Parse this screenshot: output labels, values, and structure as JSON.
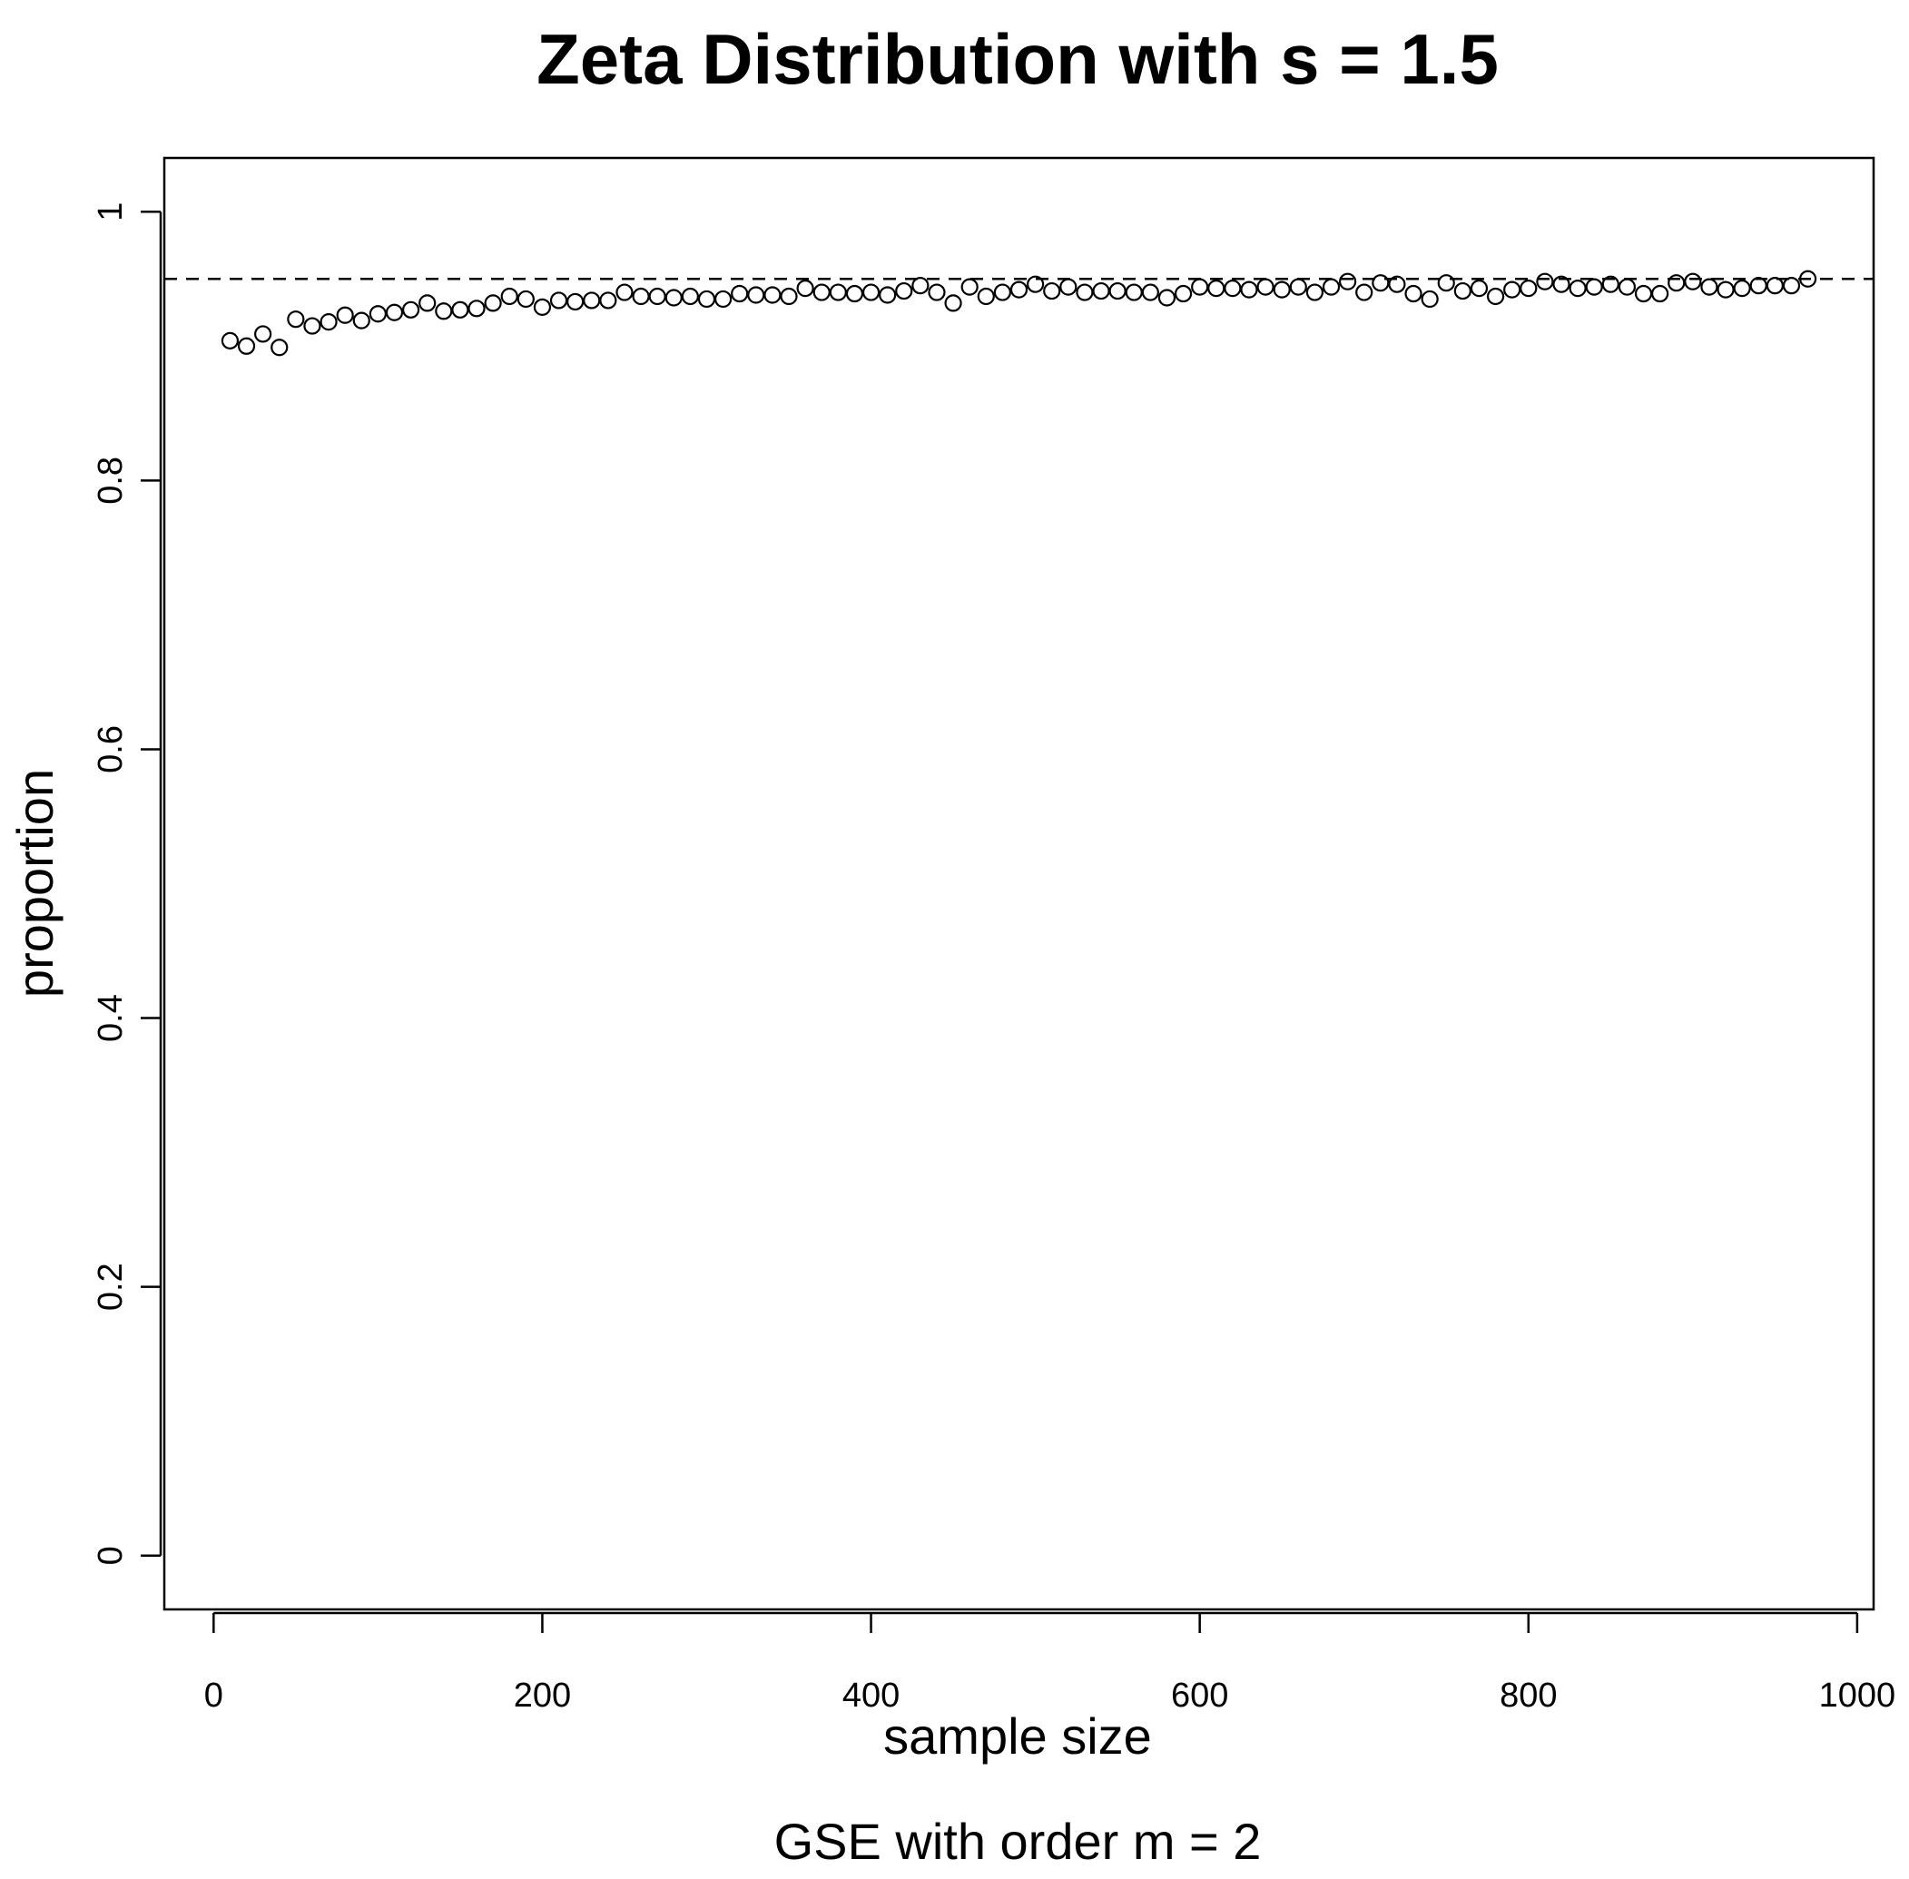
{
  "chart_data": {
    "type": "scatter",
    "title": "Zeta Distribution with s = 1.5",
    "xlabel": "sample size",
    "ylabel": "proportion",
    "subtitle": "GSE with order m = 2",
    "xlim": [
      -30,
      1010
    ],
    "ylim": [
      -0.04,
      1.04
    ],
    "x_ticks": [
      0,
      200,
      400,
      600,
      800,
      1000
    ],
    "x_tick_labels": [
      "0",
      "200",
      "400",
      "600",
      "800",
      "1000"
    ],
    "y_ticks": [
      0,
      0.2,
      0.4,
      0.6,
      0.8,
      1
    ],
    "y_tick_labels": [
      "0",
      "0.2",
      "0.4",
      "0.6",
      "0.8",
      "1"
    ],
    "reference_line": {
      "y": 0.95,
      "style": "dashed"
    },
    "marker": "open-circle",
    "grid": false,
    "x": [
      10,
      20,
      30,
      40,
      50,
      60,
      70,
      80,
      90,
      100,
      110,
      120,
      130,
      140,
      150,
      160,
      170,
      180,
      190,
      200,
      210,
      220,
      230,
      240,
      250,
      260,
      270,
      280,
      290,
      300,
      310,
      320,
      330,
      340,
      350,
      360,
      370,
      380,
      390,
      400,
      410,
      420,
      430,
      440,
      450,
      460,
      470,
      480,
      490,
      500,
      510,
      520,
      530,
      540,
      550,
      560,
      570,
      580,
      590,
      600,
      610,
      620,
      630,
      640,
      650,
      660,
      670,
      680,
      690,
      700,
      710,
      720,
      730,
      740,
      750,
      760,
      770,
      780,
      790,
      800,
      810,
      820,
      830,
      840,
      850,
      860,
      870,
      880,
      890,
      900,
      910,
      920,
      930,
      940,
      950,
      960,
      970
    ],
    "y": [
      0.904,
      0.9,
      0.909,
      0.899,
      0.92,
      0.915,
      0.918,
      0.923,
      0.919,
      0.924,
      0.925,
      0.927,
      0.932,
      0.926,
      0.927,
      0.928,
      0.932,
      0.937,
      0.935,
      0.929,
      0.934,
      0.933,
      0.934,
      0.934,
      0.94,
      0.937,
      0.937,
      0.936,
      0.937,
      0.935,
      0.935,
      0.939,
      0.938,
      0.938,
      0.937,
      0.943,
      0.94,
      0.94,
      0.939,
      0.94,
      0.938,
      0.941,
      0.945,
      0.94,
      0.932,
      0.944,
      0.937,
      0.94,
      0.942,
      0.946,
      0.941,
      0.944,
      0.94,
      0.941,
      0.941,
      0.94,
      0.94,
      0.936,
      0.939,
      0.944,
      0.943,
      0.943,
      0.942,
      0.944,
      0.942,
      0.944,
      0.94,
      0.944,
      0.948,
      0.94,
      0.947,
      0.946,
      0.939,
      0.935,
      0.947,
      0.941,
      0.943,
      0.937,
      0.942,
      0.943,
      0.948,
      0.946,
      0.943,
      0.944,
      0.946,
      0.944,
      0.939,
      0.939,
      0.947,
      0.948,
      0.944,
      0.942,
      0.943,
      0.945,
      0.945,
      0.945,
      0.95
    ]
  }
}
